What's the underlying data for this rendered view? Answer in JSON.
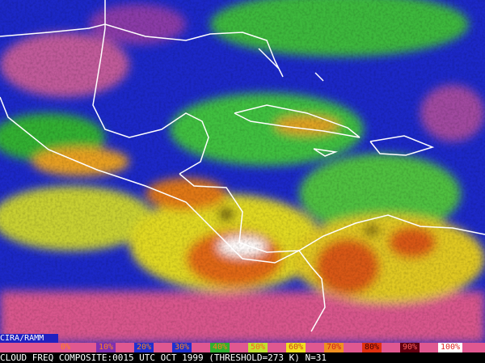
{
  "footer": {
    "credit": "CIRA/RAMM",
    "legend": [
      "0%",
      "10%",
      "20%",
      "30%",
      "40%",
      "50%",
      "60%",
      "70%",
      "80%",
      "90%",
      "100%"
    ],
    "caption": "CLOUD FREQ COMPOSITE:0015 UTC OCT 1999 (THRESHOLD=273 K) N=31"
  }
}
